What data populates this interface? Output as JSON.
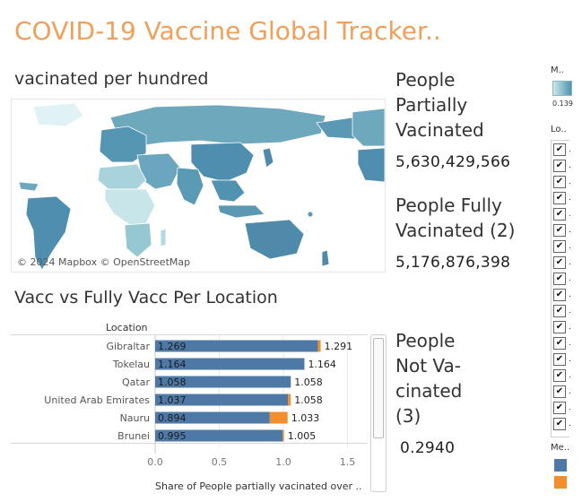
{
  "header": {
    "title": "COVID-19 Vaccine Global Tracker.."
  },
  "map": {
    "heading": "vacinated per hundred",
    "attribution": "© 2024 Mapbox © OpenStreetMap",
    "colors": {
      "low": "#d7eef0",
      "mid": "#8ec2cc",
      "high": "#4f93b0",
      "land_outline": "#ffffff"
    }
  },
  "kpis": {
    "partial": {
      "label_lines": [
        "People",
        "Partially",
        "Vacinated"
      ],
      "value": "5,630,429,566"
    },
    "fully": {
      "label_lines": [
        "People Fully",
        "Vacinated (2)"
      ],
      "value": "5,176,876,398"
    },
    "not_vaccinated": {
      "label_lines": [
        "People",
        "Not Va-",
        "cinated",
        "(3)"
      ],
      "value": "0.2940"
    }
  },
  "bar_chart": {
    "heading": "Vacc vs Fully Vacc Per Location",
    "column_header": "Location"
  },
  "chart_data": {
    "type": "bar",
    "orientation": "horizontal",
    "categories": [
      "Gibraltar",
      "Tokelau",
      "Qatar",
      "United Arab Emirates",
      "Nauru",
      "Brunei"
    ],
    "series": [
      {
        "values": [
          1.269,
          1.164,
          1.058,
          1.037,
          0.894,
          0.995
        ],
        "color": "#4e79a7"
      },
      {
        "values": [
          1.291,
          1.164,
          1.058,
          1.058,
          1.033,
          1.005
        ],
        "color": "#f28e2b"
      }
    ],
    "inner_labels": [
      "1.269",
      "1.164",
      "1.058",
      "1.037",
      "0.894",
      "0.995"
    ],
    "total_labels": [
      "1.291",
      "1.164",
      "1.058",
      "1.058",
      "1.033",
      "1.005"
    ],
    "xlim": [
      0,
      1.5
    ],
    "x_ticks": [
      "0.0",
      "0.5",
      "1.0",
      "1.5"
    ],
    "xlabel": "Share of People partially vacinated over ..",
    "grid": true
  },
  "legends": {
    "map_legend": {
      "title": "M..",
      "tick": "0.139",
      "colors": [
        "#cde7ea",
        "#4f93b0"
      ]
    },
    "location_filter": {
      "title": "Lo..",
      "items": [
        {
          "checked": true,
          "label": "."
        },
        {
          "checked": true,
          "label": "."
        },
        {
          "checked": true,
          "label": "."
        },
        {
          "checked": true,
          "label": "."
        },
        {
          "checked": true,
          "label": "."
        },
        {
          "checked": true,
          "label": "."
        },
        {
          "checked": true,
          "label": "."
        },
        {
          "checked": true,
          "label": "."
        },
        {
          "checked": true,
          "label": "."
        },
        {
          "checked": true,
          "label": "."
        },
        {
          "checked": true,
          "label": "."
        },
        {
          "checked": true,
          "label": "."
        },
        {
          "checked": true,
          "label": "."
        },
        {
          "checked": true,
          "label": "."
        },
        {
          "checked": true,
          "label": "."
        },
        {
          "checked": true,
          "label": "."
        },
        {
          "checked": true,
          "label": "."
        },
        {
          "checked": true,
          "label": "."
        }
      ],
      "check_glyph": "✔"
    },
    "measure_legend": {
      "title": "Me..",
      "colors": [
        "#4e79a7",
        "#f28e2b"
      ]
    }
  }
}
